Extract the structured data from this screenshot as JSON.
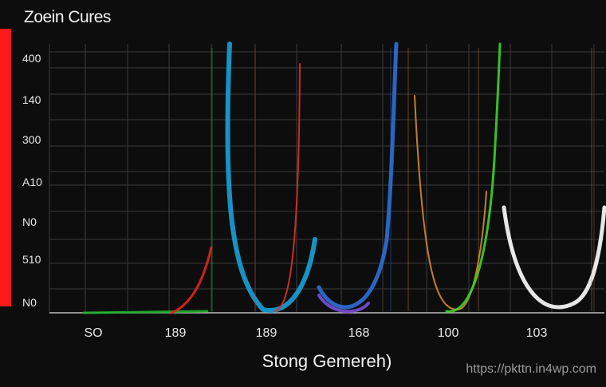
{
  "chart_data": {
    "type": "line",
    "title": "Zoein Cures",
    "xlabel": "Stong Gemereh)",
    "ylabel": "",
    "ytick_labels": [
      "400",
      "140",
      "300",
      "A10",
      "N0",
      "510",
      "N0"
    ],
    "xtick_labels": [
      "SO",
      "189",
      "189",
      "168",
      "100",
      "103"
    ],
    "grid": true,
    "curves": [
      {
        "color": "#1fb32a",
        "shape": "baseline"
      },
      {
        "color": "#e6231c",
        "shape": "rising"
      },
      {
        "color": "#1aa0d8",
        "shape": "u"
      },
      {
        "color": "#e03020",
        "shape": "rising"
      },
      {
        "color": "#2f6fd6",
        "shape": "u"
      },
      {
        "color": "#7a4fd8",
        "shape": "u"
      },
      {
        "color": "#d9892e",
        "shape": "u"
      },
      {
        "color": "#3cd42a",
        "shape": "u"
      },
      {
        "color": "#ffffff",
        "shape": "rising"
      }
    ],
    "accent_bar_color": "#ff1a1a"
  },
  "watermark": "https://pkttn.in4wp.com"
}
